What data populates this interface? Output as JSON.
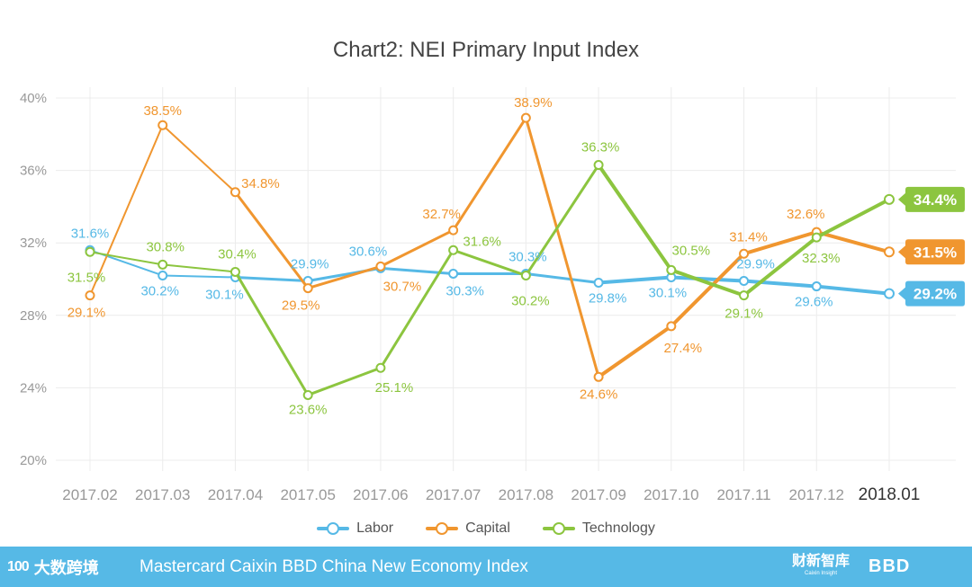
{
  "chart_data": {
    "type": "line",
    "title": "Chart2: NEI Primary Input Index",
    "categories": [
      "2017.02",
      "2017.03",
      "2017.04",
      "2017.05",
      "2017.06",
      "2017.07",
      "2017.08",
      "2017.09",
      "2017.10",
      "2017.11",
      "2017.12",
      "2018.01"
    ],
    "y_ticks": [
      "20%",
      "24%",
      "28%",
      "32%",
      "36%",
      "40%"
    ],
    "ylim": [
      20,
      40
    ],
    "grid": true,
    "legend_position": "bottom",
    "series": [
      {
        "name": "Labor",
        "color": "#56b9e6",
        "values": [
          31.6,
          30.2,
          30.1,
          29.9,
          30.6,
          30.3,
          30.3,
          29.8,
          30.1,
          29.9,
          29.6,
          29.2
        ],
        "labels": [
          "31.6%",
          "30.2%",
          "30.1%",
          "29.9%",
          "30.6%",
          "30.3%",
          "30.3%",
          "29.8%",
          "30.1%",
          "29.9%",
          "29.6%",
          "29.2%"
        ]
      },
      {
        "name": "Capital",
        "color": "#f0962f",
        "values": [
          29.1,
          38.5,
          34.8,
          29.5,
          30.7,
          32.7,
          38.9,
          24.6,
          27.4,
          31.4,
          32.6,
          31.5
        ],
        "labels": [
          "29.1%",
          "38.5%",
          "34.8%",
          "29.5%",
          "30.7%",
          "32.7%",
          "38.9%",
          "24.6%",
          "27.4%",
          "31.4%",
          "32.6%",
          "31.5%"
        ]
      },
      {
        "name": "Technology",
        "color": "#8cc53f",
        "values": [
          31.5,
          30.8,
          30.4,
          23.6,
          25.1,
          31.6,
          30.2,
          36.3,
          30.5,
          29.1,
          32.3,
          34.4
        ],
        "labels": [
          "31.5%",
          "30.8%",
          "30.4%",
          "23.6%",
          "25.1%",
          "31.6%",
          "30.2%",
          "36.3%",
          "30.5%",
          "29.1%",
          "32.3%",
          "34.4%"
        ]
      }
    ]
  },
  "legend": {
    "labor": "Labor",
    "capital": "Capital",
    "technology": "Technology"
  },
  "footer": {
    "logo_left_mark": "100",
    "logo_left_text": "大数跨境",
    "text": "Mastercard Caixin BBD China New Economy Index",
    "caixin_logo": "财新智库",
    "caixin_sub": "Caixin Insight",
    "bbd_logo": "BBD"
  }
}
